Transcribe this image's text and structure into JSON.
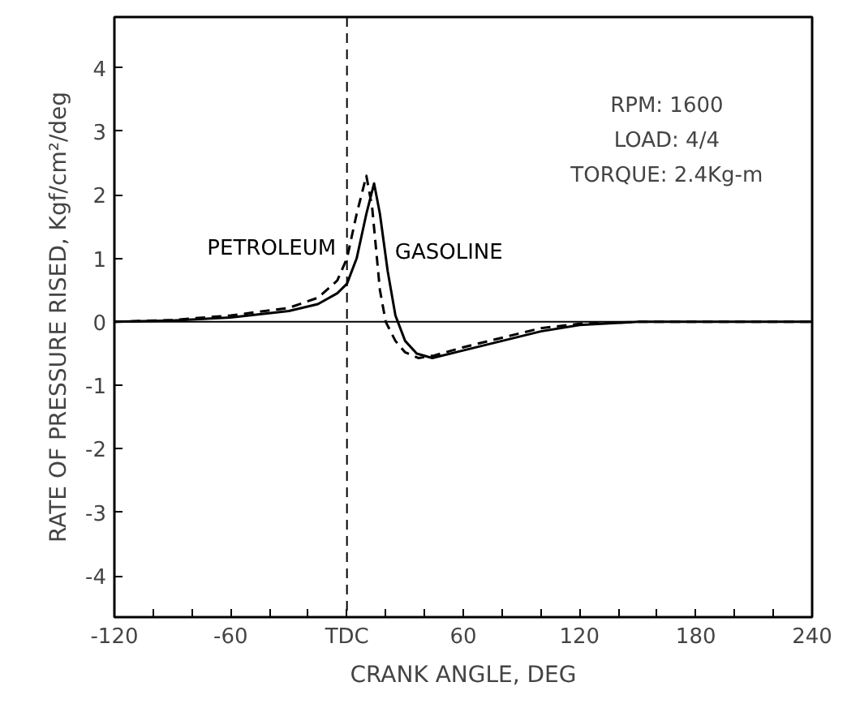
{
  "chart_data": {
    "type": "line",
    "xlabel": "CRANK ANGLE, DEG",
    "ylabel": "RATE OF PRESSURE RISED, Kgf/cm²/deg",
    "xlim": [
      -120,
      240
    ],
    "ylim": [
      -4.65,
      4.8
    ],
    "xticks": [
      -120,
      {
        "value": -100,
        "label": null
      },
      {
        "value": -80,
        "label": null
      },
      -60,
      {
        "value": -40,
        "label": null
      },
      {
        "value": -20,
        "label": null
      },
      {
        "value": 0,
        "label": "TDC"
      },
      {
        "value": 20,
        "label": null
      },
      {
        "value": 40,
        "label": null
      },
      60,
      {
        "value": 80,
        "label": null
      },
      {
        "value": 100,
        "label": null
      },
      120,
      {
        "value": 140,
        "label": null
      },
      {
        "value": 160,
        "label": null
      },
      180,
      {
        "value": 200,
        "label": null
      },
      {
        "value": 220,
        "label": null
      },
      240
    ],
    "yticks": [
      -4,
      -3,
      -2,
      -1,
      0,
      1,
      2,
      3,
      4
    ],
    "grid": false,
    "series": [
      {
        "name": "PETROLEUM",
        "color": "#000000",
        "line_style": "dashed",
        "x": [
          -120,
          -90,
          -60,
          -30,
          -15,
          -5,
          0,
          5,
          10,
          13,
          17,
          20,
          25,
          30,
          37,
          45,
          60,
          80,
          100,
          120,
          150,
          240
        ],
        "values": [
          0,
          0.03,
          0.1,
          0.22,
          0.38,
          0.65,
          1.0,
          1.7,
          2.3,
          1.8,
          0.5,
          0,
          -0.3,
          -0.48,
          -0.57,
          -0.53,
          -0.4,
          -0.25,
          -0.1,
          -0.03,
          0,
          0
        ]
      },
      {
        "name": "GASOLINE",
        "color": "#000000",
        "line_style": "solid",
        "x": [
          -120,
          -90,
          -60,
          -30,
          -15,
          -5,
          0,
          5,
          10,
          14,
          17,
          21,
          25,
          30,
          36,
          44,
          60,
          80,
          100,
          120,
          150,
          240
        ],
        "values": [
          0,
          0.02,
          0.07,
          0.17,
          0.28,
          0.45,
          0.6,
          1.0,
          1.7,
          2.18,
          1.7,
          0.8,
          0.1,
          -0.3,
          -0.5,
          -0.57,
          -0.45,
          -0.3,
          -0.15,
          -0.05,
          0,
          0
        ]
      }
    ],
    "ref_lines": [
      {
        "axis": "x",
        "value": 0,
        "label": null,
        "color": "#000000",
        "line_style": "dashed"
      },
      {
        "axis": "y",
        "value": 0,
        "label": null,
        "color": "#000000",
        "line_style": "solid"
      }
    ],
    "annotations": [
      "RPM: 1600",
      "LOAD: 4/4",
      "TORQUE: 2.4Kg-m"
    ]
  }
}
